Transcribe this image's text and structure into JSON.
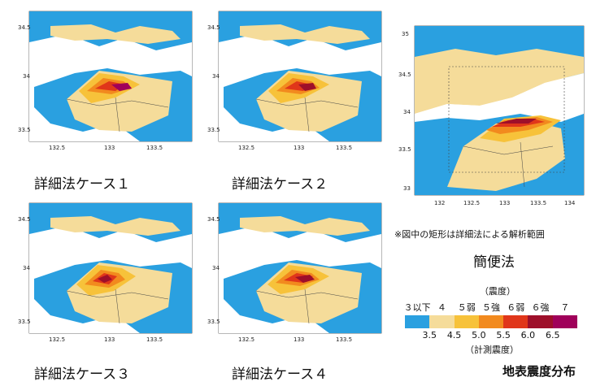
{
  "cases": [
    {
      "caption": "詳細法ケース１"
    },
    {
      "caption": "詳細法ケース２"
    },
    {
      "caption": "詳細法ケース３"
    },
    {
      "caption": "詳細法ケース４"
    }
  ],
  "small_map_ticks": {
    "lat": [
      "34.5",
      "34",
      "33.5"
    ],
    "lon": [
      "132.5",
      "133",
      "133.5"
    ]
  },
  "large_map_ticks": {
    "lat": [
      "35",
      "34.5",
      "34",
      "33.5",
      "33"
    ],
    "lon": [
      "132",
      "132.5",
      "133",
      "133.5",
      "134"
    ]
  },
  "note": "※図中の矩形は詳細法による解析範囲",
  "simple_method_title": "簡便法",
  "legend": {
    "intensity_title": "（震度）",
    "intensity_classes": [
      "３以下",
      "４",
      "５弱",
      "５強",
      "６弱",
      "６強",
      "７"
    ],
    "colors": [
      "#2aa0e0",
      "#f5dc9a",
      "#f7c23a",
      "#f28a1e",
      "#e0361a",
      "#9e0f2a",
      "#a0005a"
    ],
    "boundaries": [
      "3.5",
      "4.5",
      "5.0",
      "5.5",
      "6.0",
      "6.5"
    ],
    "measured_title": "（計測震度）"
  },
  "footer_title": "地表震度分布"
}
